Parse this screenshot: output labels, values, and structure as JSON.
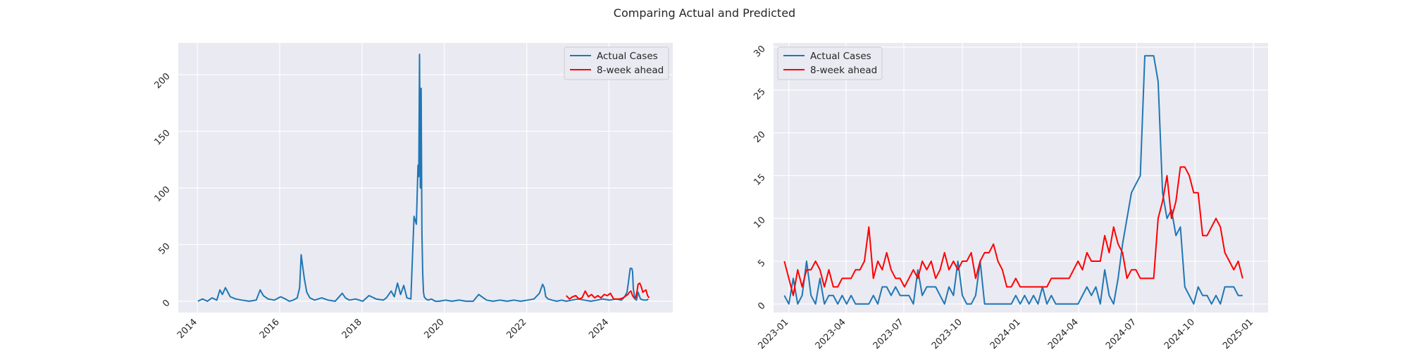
{
  "title": "Comparing Actual and Predicted",
  "colors": {
    "actual": "#1f77b4",
    "predicted": "#ff0000",
    "plot_background": "#eaeaf2",
    "grid": "#ffffff",
    "text": "#262626"
  },
  "chart_data": [
    {
      "type": "line",
      "title": "",
      "xlabel": "",
      "ylabel": "",
      "grid": true,
      "legend_position": "upper right",
      "xlim": [
        "2013-07-15",
        "2025-07-20"
      ],
      "ylim": [
        -10,
        228
      ],
      "x_ticks": [
        "2014",
        "2016",
        "2018",
        "2020",
        "2022",
        "2024"
      ],
      "y_ticks": [
        "0",
        "50",
        "100",
        "150",
        "200"
      ],
      "series": [
        {
          "name": "Actual Cases",
          "color": "#1f77b4",
          "x": [
            "2014-01-05",
            "2014-02-16",
            "2014-03-30",
            "2014-05-11",
            "2014-06-22",
            "2014-07-20",
            "2014-08-10",
            "2014-09-07",
            "2014-10-19",
            "2014-12-07",
            "2015-02-01",
            "2015-04-05",
            "2015-06-07",
            "2015-07-12",
            "2015-08-09",
            "2015-09-20",
            "2015-11-15",
            "2016-01-10",
            "2016-02-21",
            "2016-03-27",
            "2016-05-01",
            "2016-06-05",
            "2016-06-26",
            "2016-07-10",
            "2016-07-24",
            "2016-08-07",
            "2016-08-28",
            "2016-09-25",
            "2016-11-06",
            "2017-01-08",
            "2017-03-05",
            "2017-05-07",
            "2017-07-09",
            "2017-08-06",
            "2017-09-10",
            "2017-11-05",
            "2018-01-07",
            "2018-03-04",
            "2018-05-06",
            "2018-07-08",
            "2018-08-05",
            "2018-09-16",
            "2018-10-14",
            "2018-11-11",
            "2018-12-09",
            "2019-01-06",
            "2019-02-03",
            "2019-03-10",
            "2019-04-07",
            "2019-04-28",
            "2019-05-12",
            "2019-05-19",
            "2019-05-26",
            "2019-06-02",
            "2019-06-09",
            "2019-06-16",
            "2019-06-23",
            "2019-06-30",
            "2019-07-07",
            "2019-07-21",
            "2019-08-11",
            "2019-09-08",
            "2019-10-13",
            "2019-11-17",
            "2020-01-12",
            "2020-03-08",
            "2020-05-10",
            "2020-07-12",
            "2020-09-13",
            "2020-11-01",
            "2021-01-10",
            "2021-03-07",
            "2021-05-09",
            "2021-07-11",
            "2021-09-12",
            "2021-11-07",
            "2022-01-09",
            "2022-03-06",
            "2022-04-24",
            "2022-05-22",
            "2022-06-05",
            "2022-06-19",
            "2022-07-10",
            "2022-08-14",
            "2022-09-25",
            "2022-11-06",
            "2022-12-18",
            "2023-02-05",
            "2023-04-02",
            "2023-05-28",
            "2023-07-23",
            "2023-09-17",
            "2023-11-05",
            "2024-01-07",
            "2024-03-03",
            "2024-04-21",
            "2024-05-19",
            "2024-06-09",
            "2024-06-23",
            "2024-07-07",
            "2024-07-21",
            "2024-07-28",
            "2024-08-04",
            "2024-08-18",
            "2024-09-01",
            "2024-09-15",
            "2024-10-06",
            "2024-11-03",
            "2024-12-01",
            "2024-12-15"
          ],
          "y": [
            0,
            2,
            0,
            3,
            1,
            10,
            6,
            12,
            4,
            2,
            1,
            0,
            1,
            10,
            5,
            2,
            1,
            4,
            2,
            0,
            1,
            3,
            12,
            41,
            30,
            20,
            8,
            3,
            1,
            3,
            1,
            0,
            7,
            3,
            1,
            2,
            0,
            5,
            2,
            1,
            3,
            9,
            4,
            16,
            6,
            14,
            3,
            2,
            75,
            68,
            120,
            110,
            218,
            100,
            188,
            60,
            25,
            8,
            4,
            2,
            1,
            2,
            0,
            0,
            1,
            0,
            1,
            0,
            0,
            6,
            1,
            0,
            1,
            0,
            1,
            0,
            1,
            2,
            7,
            15,
            12,
            4,
            2,
            1,
            0,
            1,
            0,
            1,
            2,
            1,
            0,
            1,
            2,
            1,
            2,
            1,
            4,
            8,
            18,
            29,
            29,
            26,
            11,
            2,
            1,
            8,
            2,
            1,
            1,
            2
          ]
        },
        {
          "name": "8-week ahead",
          "color": "#ff0000",
          "x": [
            "2022-12-18",
            "2023-01-15",
            "2023-02-12",
            "2023-03-12",
            "2023-04-09",
            "2023-05-07",
            "2023-06-04",
            "2023-07-02",
            "2023-07-30",
            "2023-08-27",
            "2023-09-24",
            "2023-10-22",
            "2023-11-19",
            "2023-12-17",
            "2024-01-14",
            "2024-02-11",
            "2024-03-10",
            "2024-04-07",
            "2024-05-05",
            "2024-06-02",
            "2024-06-16",
            "2024-06-30",
            "2024-07-14",
            "2024-07-28",
            "2024-08-11",
            "2024-08-25",
            "2024-09-08",
            "2024-09-15",
            "2024-09-29",
            "2024-10-13",
            "2024-10-27",
            "2024-11-10",
            "2024-11-24",
            "2024-12-08",
            "2024-12-15",
            "2024-12-22"
          ],
          "y": [
            5,
            2,
            4,
            5,
            2,
            3,
            9,
            4,
            6,
            3,
            5,
            3,
            6,
            5,
            7,
            2,
            2,
            2,
            3,
            5,
            6,
            8,
            9,
            5,
            3,
            3,
            10,
            15,
            16,
            13,
            8,
            9,
            10,
            5,
            4,
            3
          ]
        }
      ]
    },
    {
      "type": "line",
      "title": "",
      "xlabel": "",
      "ylabel": "",
      "grid": true,
      "legend_position": "upper left",
      "xlim": [
        "2022-12-08",
        "2025-01-24"
      ],
      "ylim": [
        -1,
        30.5
      ],
      "x_ticks": [
        "2023-01",
        "2023-04",
        "2023-07",
        "2023-10",
        "2024-01",
        "2024-04",
        "2024-07",
        "2024-10",
        "2025-01"
      ],
      "y_ticks": [
        "0",
        "5",
        "10",
        "15",
        "20",
        "25",
        "30"
      ],
      "series": [
        {
          "name": "Actual Cases",
          "color": "#1f77b4",
          "x": [
            "2022-12-25",
            "2023-01-01",
            "2023-01-08",
            "2023-01-15",
            "2023-01-22",
            "2023-01-29",
            "2023-02-05",
            "2023-02-12",
            "2023-02-19",
            "2023-02-26",
            "2023-03-05",
            "2023-03-12",
            "2023-03-19",
            "2023-03-26",
            "2023-04-02",
            "2023-04-09",
            "2023-04-16",
            "2023-04-23",
            "2023-04-30",
            "2023-05-07",
            "2023-05-14",
            "2023-05-21",
            "2023-05-28",
            "2023-06-04",
            "2023-06-11",
            "2023-06-18",
            "2023-06-25",
            "2023-07-02",
            "2023-07-09",
            "2023-07-16",
            "2023-07-23",
            "2023-07-30",
            "2023-08-06",
            "2023-08-13",
            "2023-08-20",
            "2023-08-27",
            "2023-09-03",
            "2023-09-10",
            "2023-09-17",
            "2023-09-24",
            "2023-10-01",
            "2023-10-08",
            "2023-10-15",
            "2023-10-22",
            "2023-10-29",
            "2023-11-05",
            "2023-11-12",
            "2023-11-19",
            "2023-11-26",
            "2023-12-03",
            "2023-12-10",
            "2023-12-17",
            "2023-12-24",
            "2023-12-31",
            "2024-01-07",
            "2024-01-14",
            "2024-01-21",
            "2024-01-28",
            "2024-02-04",
            "2024-02-11",
            "2024-02-18",
            "2024-02-25",
            "2024-03-03",
            "2024-03-10",
            "2024-03-17",
            "2024-03-24",
            "2024-03-31",
            "2024-04-07",
            "2024-04-14",
            "2024-04-21",
            "2024-04-28",
            "2024-05-05",
            "2024-05-12",
            "2024-05-19",
            "2024-05-26",
            "2024-06-02",
            "2024-06-09",
            "2024-06-16",
            "2024-06-23",
            "2024-06-30",
            "2024-07-07",
            "2024-07-14",
            "2024-07-21",
            "2024-07-28",
            "2024-08-04",
            "2024-08-11",
            "2024-08-18",
            "2024-08-25",
            "2024-09-01",
            "2024-09-08",
            "2024-09-15",
            "2024-09-22",
            "2024-09-29",
            "2024-10-06",
            "2024-10-13",
            "2024-10-20",
            "2024-10-27",
            "2024-11-03",
            "2024-11-10",
            "2024-11-17",
            "2024-11-24",
            "2024-12-01",
            "2024-12-08",
            "2024-12-15"
          ],
          "y": [
            1,
            0,
            3,
            0,
            1,
            5,
            1,
            0,
            3,
            0,
            1,
            1,
            0,
            1,
            0,
            1,
            0,
            0,
            0,
            0,
            1,
            0,
            2,
            2,
            1,
            2,
            1,
            1,
            1,
            0,
            4,
            1,
            2,
            2,
            2,
            1,
            0,
            2,
            1,
            5,
            1,
            0,
            0,
            1,
            5,
            0,
            0,
            0,
            0,
            0,
            0,
            0,
            1,
            0,
            1,
            0,
            1,
            0,
            2,
            0,
            1,
            0,
            0,
            0,
            0,
            0,
            0,
            1,
            2,
            1,
            2,
            0,
            4,
            1,
            0,
            3,
            7,
            10,
            13,
            14,
            15,
            29,
            29,
            29,
            26,
            13,
            10,
            11,
            8,
            9,
            2,
            1,
            0,
            2,
            1,
            1,
            0,
            1,
            0,
            2,
            2,
            2,
            1,
            1
          ]
        },
        {
          "name": "8-week ahead",
          "color": "#ff0000",
          "x": [
            "2022-12-25",
            "2023-01-01",
            "2023-01-08",
            "2023-01-15",
            "2023-01-22",
            "2023-01-29",
            "2023-02-05",
            "2023-02-12",
            "2023-02-19",
            "2023-02-26",
            "2023-03-05",
            "2023-03-12",
            "2023-03-19",
            "2023-03-26",
            "2023-04-02",
            "2023-04-09",
            "2023-04-16",
            "2023-04-23",
            "2023-04-30",
            "2023-05-07",
            "2023-05-14",
            "2023-05-21",
            "2023-05-28",
            "2023-06-04",
            "2023-06-11",
            "2023-06-18",
            "2023-06-25",
            "2023-07-02",
            "2023-07-09",
            "2023-07-16",
            "2023-07-23",
            "2023-07-30",
            "2023-08-06",
            "2023-08-13",
            "2023-08-20",
            "2023-08-27",
            "2023-09-03",
            "2023-09-10",
            "2023-09-17",
            "2023-09-24",
            "2023-10-01",
            "2023-10-08",
            "2023-10-15",
            "2023-10-22",
            "2023-10-29",
            "2023-11-05",
            "2023-11-12",
            "2023-11-19",
            "2023-11-26",
            "2023-12-03",
            "2023-12-10",
            "2023-12-17",
            "2023-12-24",
            "2023-12-31",
            "2024-01-07",
            "2024-01-14",
            "2024-01-21",
            "2024-01-28",
            "2024-02-04",
            "2024-02-11",
            "2024-02-18",
            "2024-02-25",
            "2024-03-03",
            "2024-03-10",
            "2024-03-17",
            "2024-03-24",
            "2024-03-31",
            "2024-04-07",
            "2024-04-14",
            "2024-04-21",
            "2024-04-28",
            "2024-05-05",
            "2024-05-12",
            "2024-05-19",
            "2024-05-26",
            "2024-06-02",
            "2024-06-09",
            "2024-06-16",
            "2024-06-23",
            "2024-06-30",
            "2024-07-07",
            "2024-07-14",
            "2024-07-21",
            "2024-07-28",
            "2024-08-04",
            "2024-08-11",
            "2024-08-18",
            "2024-08-25",
            "2024-09-01",
            "2024-09-08",
            "2024-09-15",
            "2024-09-22",
            "2024-09-29",
            "2024-10-06",
            "2024-10-13",
            "2024-10-20",
            "2024-10-27",
            "2024-11-03",
            "2024-11-10",
            "2024-11-17",
            "2024-11-24",
            "2024-12-01",
            "2024-12-08",
            "2024-12-15"
          ],
          "y": [
            5,
            3,
            1,
            4,
            2,
            4,
            4,
            5,
            4,
            2,
            4,
            2,
            2,
            3,
            3,
            3,
            4,
            4,
            5,
            9,
            3,
            5,
            4,
            6,
            4,
            3,
            3,
            2,
            3,
            4,
            3,
            5,
            4,
            5,
            3,
            4,
            6,
            4,
            5,
            4,
            5,
            5,
            6,
            3,
            5,
            6,
            6,
            7,
            5,
            4,
            2,
            2,
            3,
            2,
            2,
            2,
            2,
            2,
            2,
            2,
            3,
            3,
            3,
            3,
            3,
            4,
            5,
            4,
            6,
            5,
            5,
            5,
            8,
            6,
            9,
            7,
            6,
            3,
            4,
            4,
            3,
            3,
            3,
            3,
            10,
            12,
            15,
            10,
            12,
            16,
            16,
            15,
            13,
            13,
            8,
            8,
            9,
            10,
            9,
            6,
            5,
            4,
            5,
            3
          ]
        }
      ]
    }
  ]
}
